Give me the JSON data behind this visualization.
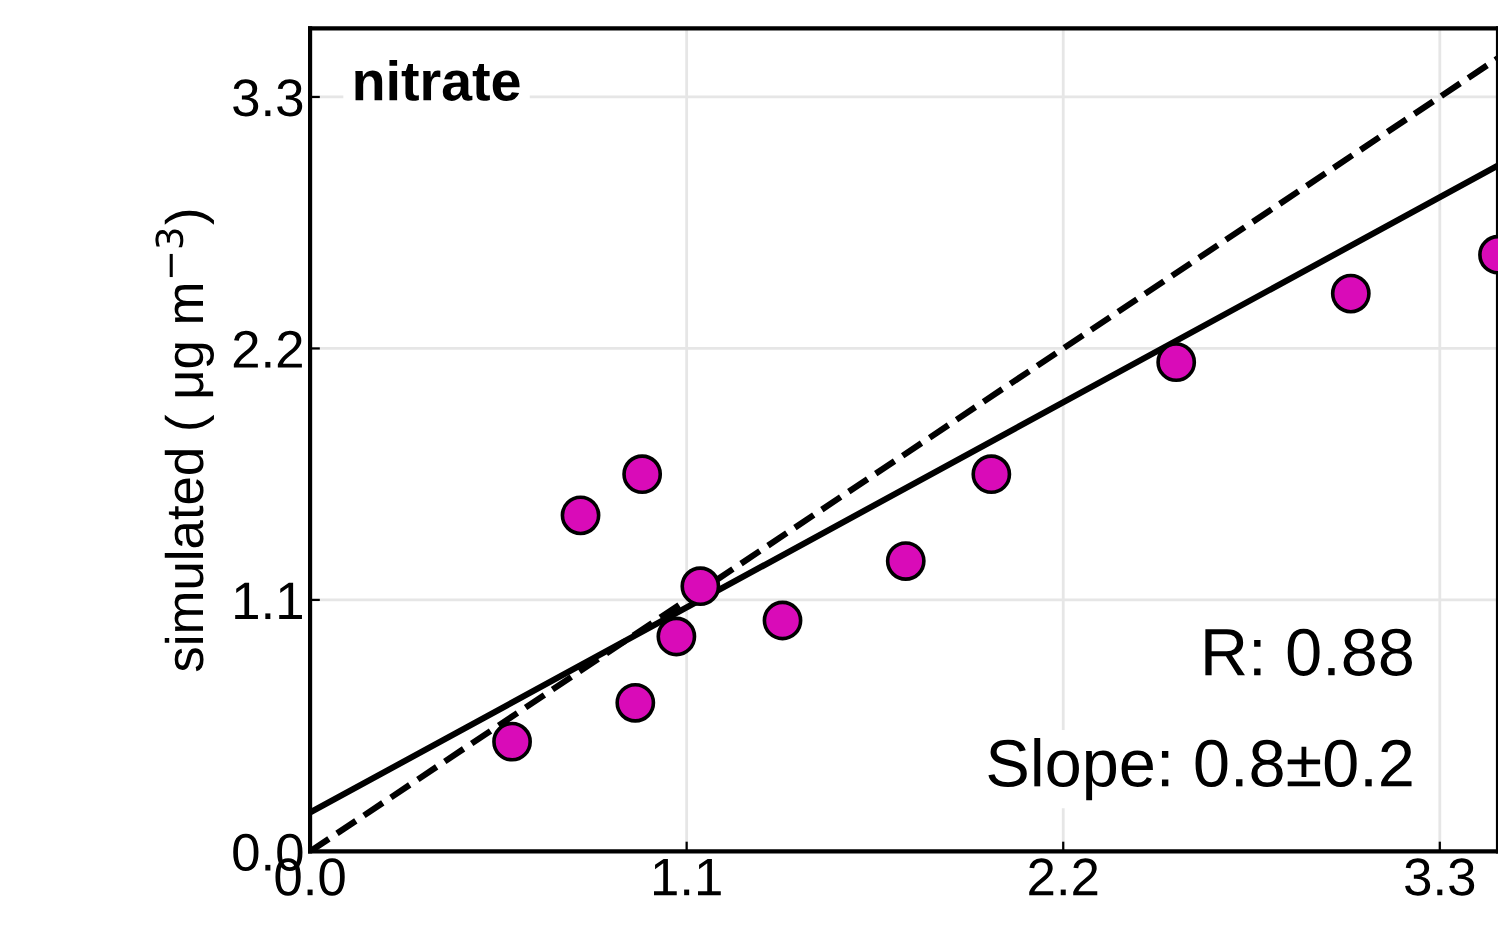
{
  "chart_data": {
    "type": "scatter",
    "ylabel": "simulated ( μg m$^{−3}$)",
    "annotations": [
      "nitrate",
      "R: 0.88",
      "Slope: 0.8±0.2"
    ],
    "xlim": [
      0,
      3.47
    ],
    "ylim": [
      0,
      3.6
    ],
    "xticks": [
      {
        "value": 0,
        "label": "0.0"
      },
      1.1,
      2.2,
      3.3
    ],
    "yticks": [
      {
        "value": 0,
        "label": "0.0"
      },
      1.1,
      2.2,
      3.3
    ],
    "grid": true,
    "series": [
      {
        "marker": "circle",
        "color": "#d90bb8",
        "x": [
          0.59,
          0.79,
          0.97,
          0.95,
          1.07,
          1.14,
          1.38,
          1.74,
          1.99,
          2.53,
          3.04,
          3.47
        ],
        "values": [
          0.48,
          1.47,
          1.65,
          0.65,
          0.94,
          1.16,
          1.01,
          1.27,
          1.65,
          2.14,
          2.44,
          2.61
        ]
      },
      {
        "type": "line",
        "color": "#000000",
        "line_style": "solid",
        "x": [
          0,
          3.47
        ],
        "values": [
          0.17,
          3.0
        ]
      },
      {
        "type": "line",
        "color": "#000000",
        "line_style": "dashed",
        "x": [
          0,
          3.47
        ],
        "values": [
          0,
          3.47
        ]
      }
    ]
  }
}
